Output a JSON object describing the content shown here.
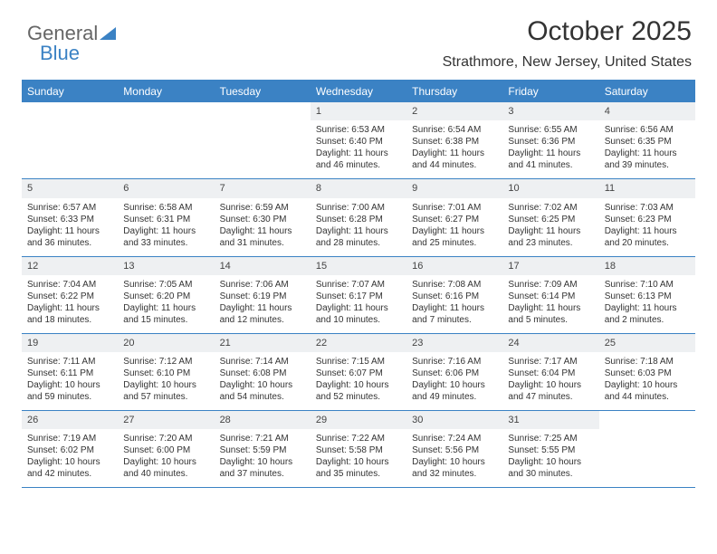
{
  "logo": {
    "text1": "General",
    "text2": "Blue"
  },
  "title": "October 2025",
  "location": "Strathmore, New Jersey, United States",
  "colors": {
    "header_bg": "#3b82c4",
    "header_text": "#ffffff",
    "daynum_bg": "#eef0f2",
    "text": "#333333",
    "border": "#3b82c4"
  },
  "day_headers": [
    "Sunday",
    "Monday",
    "Tuesday",
    "Wednesday",
    "Thursday",
    "Friday",
    "Saturday"
  ],
  "weeks": [
    [
      {
        "n": "",
        "sr": "",
        "ss": "",
        "dl1": "",
        "dl2": "",
        "empty": true
      },
      {
        "n": "",
        "sr": "",
        "ss": "",
        "dl1": "",
        "dl2": "",
        "empty": true
      },
      {
        "n": "",
        "sr": "",
        "ss": "",
        "dl1": "",
        "dl2": "",
        "empty": true
      },
      {
        "n": "1",
        "sr": "Sunrise: 6:53 AM",
        "ss": "Sunset: 6:40 PM",
        "dl1": "Daylight: 11 hours",
        "dl2": "and 46 minutes."
      },
      {
        "n": "2",
        "sr": "Sunrise: 6:54 AM",
        "ss": "Sunset: 6:38 PM",
        "dl1": "Daylight: 11 hours",
        "dl2": "and 44 minutes."
      },
      {
        "n": "3",
        "sr": "Sunrise: 6:55 AM",
        "ss": "Sunset: 6:36 PM",
        "dl1": "Daylight: 11 hours",
        "dl2": "and 41 minutes."
      },
      {
        "n": "4",
        "sr": "Sunrise: 6:56 AM",
        "ss": "Sunset: 6:35 PM",
        "dl1": "Daylight: 11 hours",
        "dl2": "and 39 minutes."
      }
    ],
    [
      {
        "n": "5",
        "sr": "Sunrise: 6:57 AM",
        "ss": "Sunset: 6:33 PM",
        "dl1": "Daylight: 11 hours",
        "dl2": "and 36 minutes."
      },
      {
        "n": "6",
        "sr": "Sunrise: 6:58 AM",
        "ss": "Sunset: 6:31 PM",
        "dl1": "Daylight: 11 hours",
        "dl2": "and 33 minutes."
      },
      {
        "n": "7",
        "sr": "Sunrise: 6:59 AM",
        "ss": "Sunset: 6:30 PM",
        "dl1": "Daylight: 11 hours",
        "dl2": "and 31 minutes."
      },
      {
        "n": "8",
        "sr": "Sunrise: 7:00 AM",
        "ss": "Sunset: 6:28 PM",
        "dl1": "Daylight: 11 hours",
        "dl2": "and 28 minutes."
      },
      {
        "n": "9",
        "sr": "Sunrise: 7:01 AM",
        "ss": "Sunset: 6:27 PM",
        "dl1": "Daylight: 11 hours",
        "dl2": "and 25 minutes."
      },
      {
        "n": "10",
        "sr": "Sunrise: 7:02 AM",
        "ss": "Sunset: 6:25 PM",
        "dl1": "Daylight: 11 hours",
        "dl2": "and 23 minutes."
      },
      {
        "n": "11",
        "sr": "Sunrise: 7:03 AM",
        "ss": "Sunset: 6:23 PM",
        "dl1": "Daylight: 11 hours",
        "dl2": "and 20 minutes."
      }
    ],
    [
      {
        "n": "12",
        "sr": "Sunrise: 7:04 AM",
        "ss": "Sunset: 6:22 PM",
        "dl1": "Daylight: 11 hours",
        "dl2": "and 18 minutes."
      },
      {
        "n": "13",
        "sr": "Sunrise: 7:05 AM",
        "ss": "Sunset: 6:20 PM",
        "dl1": "Daylight: 11 hours",
        "dl2": "and 15 minutes."
      },
      {
        "n": "14",
        "sr": "Sunrise: 7:06 AM",
        "ss": "Sunset: 6:19 PM",
        "dl1": "Daylight: 11 hours",
        "dl2": "and 12 minutes."
      },
      {
        "n": "15",
        "sr": "Sunrise: 7:07 AM",
        "ss": "Sunset: 6:17 PM",
        "dl1": "Daylight: 11 hours",
        "dl2": "and 10 minutes."
      },
      {
        "n": "16",
        "sr": "Sunrise: 7:08 AM",
        "ss": "Sunset: 6:16 PM",
        "dl1": "Daylight: 11 hours",
        "dl2": "and 7 minutes."
      },
      {
        "n": "17",
        "sr": "Sunrise: 7:09 AM",
        "ss": "Sunset: 6:14 PM",
        "dl1": "Daylight: 11 hours",
        "dl2": "and 5 minutes."
      },
      {
        "n": "18",
        "sr": "Sunrise: 7:10 AM",
        "ss": "Sunset: 6:13 PM",
        "dl1": "Daylight: 11 hours",
        "dl2": "and 2 minutes."
      }
    ],
    [
      {
        "n": "19",
        "sr": "Sunrise: 7:11 AM",
        "ss": "Sunset: 6:11 PM",
        "dl1": "Daylight: 10 hours",
        "dl2": "and 59 minutes."
      },
      {
        "n": "20",
        "sr": "Sunrise: 7:12 AM",
        "ss": "Sunset: 6:10 PM",
        "dl1": "Daylight: 10 hours",
        "dl2": "and 57 minutes."
      },
      {
        "n": "21",
        "sr": "Sunrise: 7:14 AM",
        "ss": "Sunset: 6:08 PM",
        "dl1": "Daylight: 10 hours",
        "dl2": "and 54 minutes."
      },
      {
        "n": "22",
        "sr": "Sunrise: 7:15 AM",
        "ss": "Sunset: 6:07 PM",
        "dl1": "Daylight: 10 hours",
        "dl2": "and 52 minutes."
      },
      {
        "n": "23",
        "sr": "Sunrise: 7:16 AM",
        "ss": "Sunset: 6:06 PM",
        "dl1": "Daylight: 10 hours",
        "dl2": "and 49 minutes."
      },
      {
        "n": "24",
        "sr": "Sunrise: 7:17 AM",
        "ss": "Sunset: 6:04 PM",
        "dl1": "Daylight: 10 hours",
        "dl2": "and 47 minutes."
      },
      {
        "n": "25",
        "sr": "Sunrise: 7:18 AM",
        "ss": "Sunset: 6:03 PM",
        "dl1": "Daylight: 10 hours",
        "dl2": "and 44 minutes."
      }
    ],
    [
      {
        "n": "26",
        "sr": "Sunrise: 7:19 AM",
        "ss": "Sunset: 6:02 PM",
        "dl1": "Daylight: 10 hours",
        "dl2": "and 42 minutes."
      },
      {
        "n": "27",
        "sr": "Sunrise: 7:20 AM",
        "ss": "Sunset: 6:00 PM",
        "dl1": "Daylight: 10 hours",
        "dl2": "and 40 minutes."
      },
      {
        "n": "28",
        "sr": "Sunrise: 7:21 AM",
        "ss": "Sunset: 5:59 PM",
        "dl1": "Daylight: 10 hours",
        "dl2": "and 37 minutes."
      },
      {
        "n": "29",
        "sr": "Sunrise: 7:22 AM",
        "ss": "Sunset: 5:58 PM",
        "dl1": "Daylight: 10 hours",
        "dl2": "and 35 minutes."
      },
      {
        "n": "30",
        "sr": "Sunrise: 7:24 AM",
        "ss": "Sunset: 5:56 PM",
        "dl1": "Daylight: 10 hours",
        "dl2": "and 32 minutes."
      },
      {
        "n": "31",
        "sr": "Sunrise: 7:25 AM",
        "ss": "Sunset: 5:55 PM",
        "dl1": "Daylight: 10 hours",
        "dl2": "and 30 minutes."
      },
      {
        "n": "",
        "sr": "",
        "ss": "",
        "dl1": "",
        "dl2": "",
        "empty": true
      }
    ]
  ]
}
